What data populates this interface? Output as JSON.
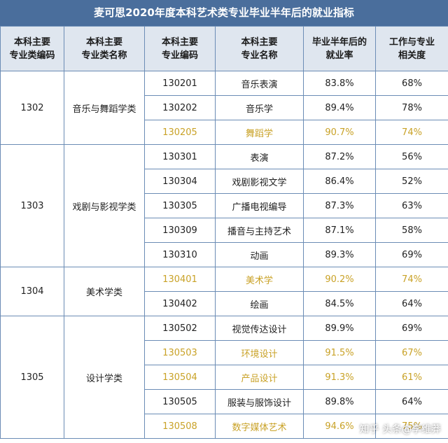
{
  "title": "麦可思2020年度本科艺术类专业毕业半年后的就业指标",
  "headers": {
    "cat_code": [
      "本科主要",
      "专业类编码"
    ],
    "cat_name": [
      "本科主要",
      "专业类名称"
    ],
    "major_code": [
      "本科主要",
      "专业编码"
    ],
    "major_name": [
      "本科主要",
      "专业名称"
    ],
    "employment": [
      "毕业半年后的",
      "就业率"
    ],
    "relevance": [
      "工作与专业",
      "相关度"
    ]
  },
  "groups": [
    {
      "code": "1302",
      "name": "音乐与舞蹈学类",
      "rows": [
        {
          "code": "130201",
          "name": "音乐表演",
          "rate": "83.8%",
          "rel": "68%",
          "highlight": false
        },
        {
          "code": "130202",
          "name": "音乐学",
          "rate": "89.4%",
          "rel": "78%",
          "highlight": false
        },
        {
          "code": "130205",
          "name": "舞蹈学",
          "rate": "90.7%",
          "rel": "74%",
          "highlight": true
        }
      ]
    },
    {
      "code": "1303",
      "name": "戏剧与影视学类",
      "rows": [
        {
          "code": "130301",
          "name": "表演",
          "rate": "87.2%",
          "rel": "56%",
          "highlight": false
        },
        {
          "code": "130304",
          "name": "戏剧影视文学",
          "rate": "86.4%",
          "rel": "52%",
          "highlight": false
        },
        {
          "code": "130305",
          "name": "广播电视编导",
          "rate": "87.3%",
          "rel": "63%",
          "highlight": false
        },
        {
          "code": "130309",
          "name": "播音与主持艺术",
          "rate": "87.1%",
          "rel": "58%",
          "highlight": false
        },
        {
          "code": "130310",
          "name": "动画",
          "rate": "89.3%",
          "rel": "69%",
          "highlight": false
        }
      ]
    },
    {
      "code": "1304",
      "name": "美术学类",
      "rows": [
        {
          "code": "130401",
          "name": "美术学",
          "rate": "90.2%",
          "rel": "74%",
          "highlight": true
        },
        {
          "code": "130402",
          "name": "绘画",
          "rate": "84.5%",
          "rel": "64%",
          "highlight": false
        }
      ]
    },
    {
      "code": "1305",
      "name": "设计学类",
      "rows": [
        {
          "code": "130502",
          "name": "视觉传达设计",
          "rate": "89.9%",
          "rel": "69%",
          "highlight": false
        },
        {
          "code": "130503",
          "name": "环境设计",
          "rate": "91.5%",
          "rel": "67%",
          "highlight": true
        },
        {
          "code": "130504",
          "name": "产品设计",
          "rate": "91.3%",
          "rel": "61%",
          "highlight": true
        },
        {
          "code": "130505",
          "name": "服装与服饰设计",
          "rate": "89.8%",
          "rel": "64%",
          "highlight": false
        },
        {
          "code": "130508",
          "name": "数字媒体艺术",
          "rate": "94.6%",
          "rel": "75%",
          "highlight": true
        }
      ]
    }
  ],
  "watermark": {
    "prefix": "知乎",
    "source": "头条",
    "at": "@李维莽"
  },
  "colors": {
    "header_bg": "#4a6e9c",
    "highlight_text": "#c9a227",
    "border": "#6b8cb5",
    "col_header_bg": "#dfe6ef"
  }
}
